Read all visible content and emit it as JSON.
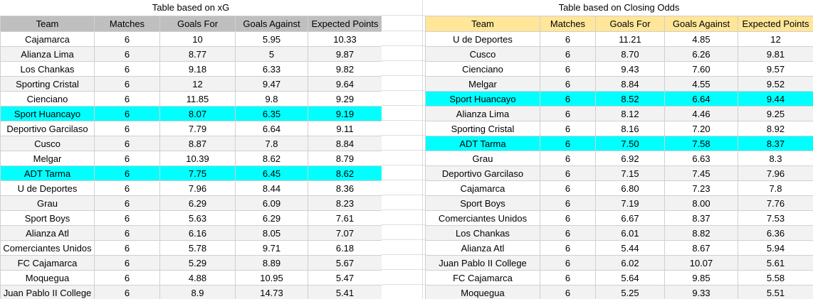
{
  "sheet": {
    "background_color": "#FFFFFF",
    "table_border_color": "#D0D0D0",
    "gridline_color": "#DEDEDE",
    "band_color": "#F2F2F2",
    "highlight_color": "#00FFFF",
    "text_color": "#000000",
    "highlight_teams": [
      "Sport Huancayo",
      "ADT Tarma"
    ]
  },
  "tables": [
    {
      "id": "xg",
      "title": "Table based on xG",
      "header_color": "#BFBFBF",
      "columns": [
        "Team",
        "Matches",
        "Goals For",
        "Goals Against",
        "Expected Points"
      ],
      "rows": [
        [
          "Cajamarca",
          "6",
          "10",
          "5.95",
          "10.33"
        ],
        [
          "Alianza Lima",
          "6",
          "8.77",
          "5",
          "9.87"
        ],
        [
          "Los Chankas",
          "6",
          "9.18",
          "6.33",
          "9.82"
        ],
        [
          "Sporting Cristal",
          "6",
          "12",
          "9.47",
          "9.64"
        ],
        [
          "Cienciano",
          "6",
          "11.85",
          "9.8",
          "9.29"
        ],
        [
          "Sport Huancayo",
          "6",
          "8.07",
          "6.35",
          "9.19"
        ],
        [
          "Deportivo Garcilaso",
          "6",
          "7.79",
          "6.64",
          "9.11"
        ],
        [
          "Cusco",
          "6",
          "8.87",
          "7.8",
          "8.84"
        ],
        [
          "Melgar",
          "6",
          "10.39",
          "8.62",
          "8.79"
        ],
        [
          "ADT Tarma",
          "6",
          "7.75",
          "6.45",
          "8.62"
        ],
        [
          "U de Deportes",
          "6",
          "7.96",
          "8.44",
          "8.36"
        ],
        [
          "Grau",
          "6",
          "6.29",
          "6.09",
          "8.23"
        ],
        [
          "Sport Boys",
          "6",
          "5.63",
          "6.29",
          "7.61"
        ],
        [
          "Alianza Atl",
          "6",
          "6.16",
          "8.05",
          "7.07"
        ],
        [
          "Comerciantes Unidos",
          "6",
          "5.78",
          "9.71",
          "6.18"
        ],
        [
          "FC Cajamarca",
          "6",
          "5.29",
          "8.89",
          "5.67"
        ],
        [
          "Moquegua",
          "6",
          "4.88",
          "10.95",
          "5.47"
        ],
        [
          "Juan Pablo II College",
          "6",
          "8.9",
          "14.73",
          "5.41"
        ]
      ]
    },
    {
      "id": "closing-odds",
      "title": "Table based on Closing Odds",
      "header_color": "#FFE699",
      "columns": [
        "Team",
        "Matches",
        "Goals For",
        "Goals Against",
        "Expected Points"
      ],
      "rows": [
        [
          "U de Deportes",
          "6",
          "11.21",
          "4.85",
          "12"
        ],
        [
          "Cusco",
          "6",
          "8.70",
          "6.26",
          "9.81"
        ],
        [
          "Cienciano",
          "6",
          "9.43",
          "7.60",
          "9.57"
        ],
        [
          "Melgar",
          "6",
          "8.84",
          "4.55",
          "9.52"
        ],
        [
          "Sport Huancayo",
          "6",
          "8.52",
          "6.64",
          "9.44"
        ],
        [
          "Alianza Lima",
          "6",
          "8.12",
          "4.46",
          "9.25"
        ],
        [
          "Sporting Cristal",
          "6",
          "8.16",
          "7.20",
          "8.92"
        ],
        [
          "ADT Tarma",
          "6",
          "7.50",
          "7.58",
          "8.37"
        ],
        [
          "Grau",
          "6",
          "6.92",
          "6.63",
          "8.3"
        ],
        [
          "Deportivo Garcilaso",
          "6",
          "7.15",
          "7.45",
          "7.96"
        ],
        [
          "Cajamarca",
          "6",
          "6.80",
          "7.23",
          "7.8"
        ],
        [
          "Sport Boys",
          "6",
          "7.19",
          "8.00",
          "7.76"
        ],
        [
          "Comerciantes Unidos",
          "6",
          "6.67",
          "8.37",
          "7.53"
        ],
        [
          "Los Chankas",
          "6",
          "6.01",
          "8.82",
          "6.36"
        ],
        [
          "Alianza Atl",
          "6",
          "5.44",
          "8.67",
          "5.94"
        ],
        [
          "Juan Pablo II College",
          "6",
          "6.02",
          "10.07",
          "5.61"
        ],
        [
          "FC Cajamarca",
          "6",
          "5.64",
          "9.85",
          "5.58"
        ],
        [
          "Moquegua",
          "6",
          "5.25",
          "9.33",
          "5.51"
        ]
      ]
    }
  ]
}
